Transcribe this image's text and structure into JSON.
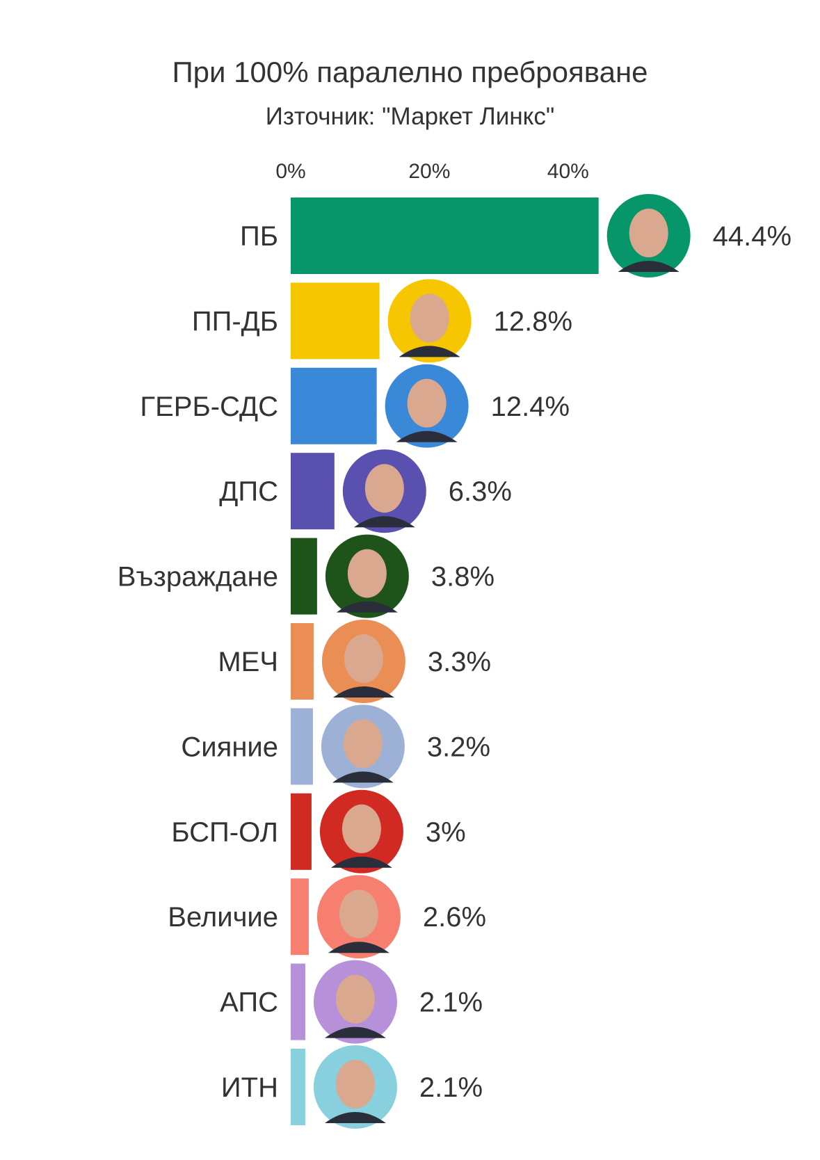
{
  "chart_data": {
    "type": "bar",
    "orientation": "horizontal",
    "title": "При 100% паралелно преброяване",
    "subtitle": "Източник: \"Маркет Линкс\"",
    "xlabel": "",
    "ylabel": "",
    "xlim": [
      0,
      45
    ],
    "xticks": [
      0,
      20,
      40
    ],
    "xtick_labels": [
      "0%",
      "20%",
      "40%"
    ],
    "grid": false,
    "categories": [
      "ПБ",
      "ПП-ДБ",
      "ГЕРБ-СДС",
      "ДПС",
      "Възраждане",
      "МЕЧ",
      "Сияние",
      "БСП-ОЛ",
      "Величие",
      "АПС",
      "ИТН"
    ],
    "values": [
      44.4,
      12.8,
      12.4,
      6.3,
      3.8,
      3.3,
      3.2,
      3,
      2.6,
      2.1,
      2.1
    ],
    "value_labels": [
      "44.4%",
      "12.8%",
      "12.4%",
      "6.3%",
      "3.8%",
      "3.3%",
      "3.2%",
      "3%",
      "2.6%",
      "2.1%",
      "2.1%"
    ],
    "colors": [
      "#079669",
      "#f6c700",
      "#3a88d8",
      "#5a50b0",
      "#1e5419",
      "#ea8e55",
      "#9db1d6",
      "#d12a22",
      "#f67f70",
      "#b690d8",
      "#89d0de"
    ]
  }
}
